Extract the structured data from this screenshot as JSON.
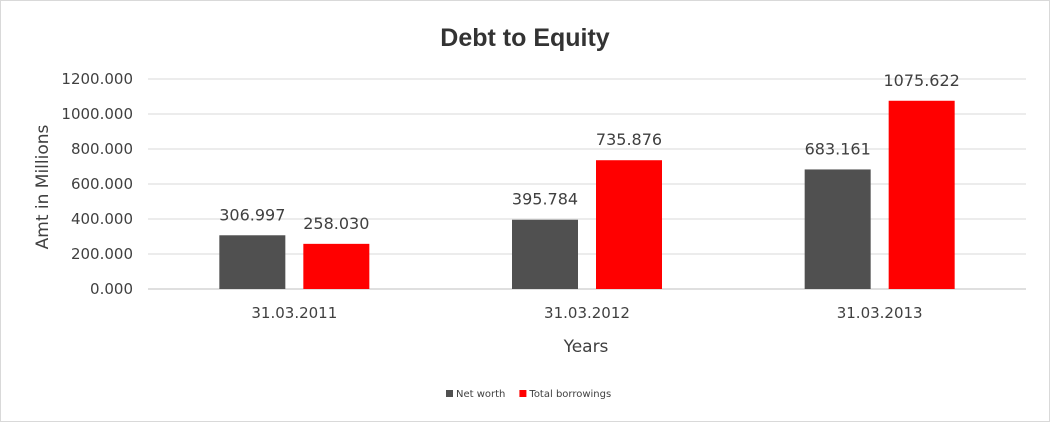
{
  "chart_data": {
    "type": "bar",
    "title": "Debt to Equity",
    "xlabel": "Years",
    "ylabel": "Amt in Millions",
    "categories": [
      "31.03.2011",
      "31.03.2012",
      "31.03.2013"
    ],
    "series": [
      {
        "name": "Net worth",
        "color": "#505050",
        "values": [
          306.997,
          395.784,
          683.161
        ],
        "labels": [
          "306.997",
          "395.784",
          "683.161"
        ]
      },
      {
        "name": "Total borrowings",
        "color": "#ff0000",
        "values": [
          258.03,
          735.876,
          1075.622
        ],
        "labels": [
          "258.030",
          "735.876",
          "1075.622"
        ]
      }
    ],
    "ylim": [
      0,
      1200
    ],
    "yticks": [
      0,
      200,
      400,
      600,
      800,
      1000,
      1200
    ],
    "ytick_labels": [
      "0.000",
      "200.000",
      "400.000",
      "600.000",
      "800.000",
      "1000.000",
      "1200.000"
    ],
    "grid": true,
    "legend_position": "bottom"
  }
}
